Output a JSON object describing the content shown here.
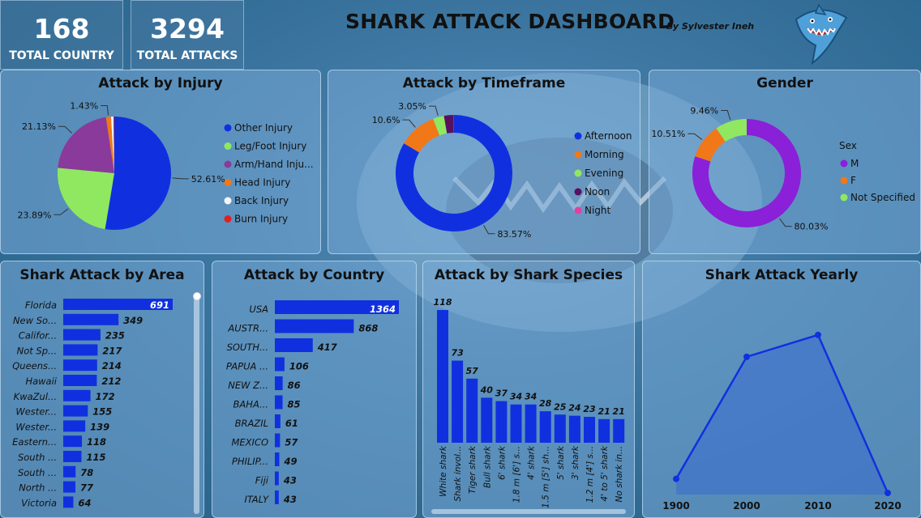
{
  "header": {
    "title": "SHARK ATTACK DASHBOARD",
    "byline": "by Sylvester Ineh"
  },
  "kpis": [
    {
      "value": "168",
      "label": "TOTAL COUNTRY"
    },
    {
      "value": "3294",
      "label": "TOTAL ATTACKS"
    }
  ],
  "colors": {
    "blue": "#1030e0",
    "green": "#90e860",
    "purple": "#8a3a9a",
    "orange": "#f07818",
    "white": "#f0f0f0",
    "red": "#e02020",
    "violet": "#8a20d8",
    "darkpurple": "#5a1060",
    "pink": "#e040a0"
  },
  "chart_data": [
    {
      "id": "injury",
      "type": "pie",
      "title": "Attack by Injury",
      "categories": [
        "Other Injury",
        "Leg/Foot Injury",
        "Arm/Hand Inju...",
        "Head Injury",
        "Back Injury",
        "Burn Injury"
      ],
      "values": [
        52.61,
        23.89,
        21.13,
        1.43,
        0.7,
        0.24
      ],
      "data_labels": [
        "52.61%",
        "23.89%",
        "21.13%",
        "1.43%",
        "",
        ""
      ],
      "colors": [
        "#1030e0",
        "#90e860",
        "#8a3a9a",
        "#f07818",
        "#f4f4f4",
        "#e02020"
      ],
      "legend": "right"
    },
    {
      "id": "timeframe",
      "type": "pie",
      "title": "Attack by Timeframe",
      "categories": [
        "Afternoon",
        "Morning",
        "Evening",
        "Noon",
        "Night"
      ],
      "values": [
        83.57,
        10.6,
        3.05,
        2.7,
        0.08
      ],
      "data_labels": [
        "83.57%",
        "10.6%",
        "3.05%",
        "",
        ""
      ],
      "colors": [
        "#1030e0",
        "#f07818",
        "#90e860",
        "#5a1060",
        "#e040a0"
      ],
      "legend": "right"
    },
    {
      "id": "gender",
      "type": "pie",
      "title": "Gender",
      "legend_title": "Sex",
      "categories": [
        "M",
        "F",
        "Not Specified"
      ],
      "values": [
        80.03,
        10.51,
        9.46
      ],
      "data_labels": [
        "80.03%",
        "10.51%",
        "9.46%"
      ],
      "colors": [
        "#8a20d8",
        "#f07818",
        "#90e860"
      ],
      "legend": "right"
    },
    {
      "id": "area",
      "type": "bar",
      "orientation": "horizontal",
      "title": "Shark Attack by Area",
      "categories": [
        "Florida",
        "New So...",
        "Califor...",
        "Not Sp...",
        "Queens...",
        "Hawaii",
        "KwaZul...",
        "Wester...",
        "Wester...",
        "Eastern...",
        "South ...",
        "South ...",
        "North ...",
        "Victoria"
      ],
      "values": [
        691,
        349,
        235,
        217,
        214,
        212,
        172,
        155,
        139,
        118,
        115,
        78,
        77,
        64
      ]
    },
    {
      "id": "country",
      "type": "bar",
      "orientation": "horizontal",
      "title": "Attack by Country",
      "categories": [
        "USA",
        "AUSTR...",
        "SOUTH...",
        "PAPUA ...",
        "NEW Z...",
        "BAHA...",
        "BRAZIL",
        "MEXICO",
        "PHILIP...",
        "Fiji",
        "ITALY"
      ],
      "values": [
        1364,
        868,
        417,
        106,
        86,
        85,
        61,
        57,
        49,
        43,
        43
      ]
    },
    {
      "id": "species",
      "type": "bar",
      "orientation": "vertical",
      "title": "Attack by Shark Species",
      "categories": [
        "White shark",
        "Shark invol...",
        "Tiger shark",
        "Bull shark",
        "6' shark",
        "1.8 m [6'] s...",
        "4' shark",
        "1.5 m [5'] sh...",
        "5' shark",
        "3' shark",
        "1.2 m [4'] s...",
        "4' to 5' shark",
        "No shark in..."
      ],
      "values": [
        118,
        73,
        57,
        40,
        37,
        34,
        34,
        28,
        25,
        24,
        23,
        21,
        21
      ]
    },
    {
      "id": "yearly",
      "type": "area",
      "title": "Shark Attack Yearly",
      "x": [
        "1900",
        "2000",
        "2010",
        "2020"
      ],
      "values": [
        5,
        44,
        51,
        0.5
      ],
      "ylim": [
        0,
        60
      ]
    }
  ]
}
